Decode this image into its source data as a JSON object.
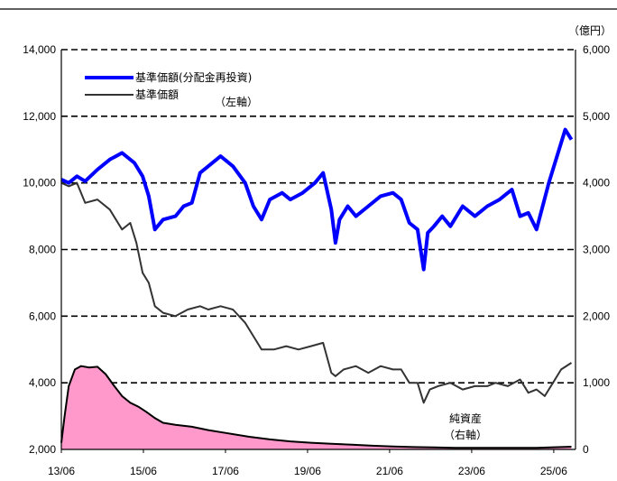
{
  "chart_data": {
    "type": "line",
    "unit_right": "（億円）",
    "x_ticks": [
      "13/06",
      "15/06",
      "17/06",
      "19/06",
      "21/06",
      "23/06",
      "25/06"
    ],
    "y_left": {
      "min": 2000,
      "max": 14000,
      "ticks": [
        "2,000",
        "4,000",
        "6,000",
        "8,000",
        "10,000",
        "12,000",
        "14,000"
      ]
    },
    "y_right": {
      "min": 0,
      "max": 6000,
      "ticks": [
        "0",
        "1,000",
        "2,000",
        "3,000",
        "4,000",
        "5,000",
        "6,000"
      ]
    },
    "gridlines": "dashed",
    "legend": {
      "items": [
        {
          "label": "基準価額(分配金再投資)",
          "color": "#0000ff"
        },
        {
          "label": "基準価額",
          "color": "#333333"
        }
      ],
      "note": "（左軸）"
    },
    "annotation": {
      "line1": "純資産",
      "line2": "（右軸）"
    },
    "series": [
      {
        "name": "基準価額(分配金再投資)",
        "axis": "left",
        "color": "#0000ff",
        "x": [
          2013.42,
          2013.6,
          2013.8,
          2014.0,
          2014.3,
          2014.6,
          2014.9,
          2015.2,
          2015.4,
          2015.55,
          2015.7,
          2015.9,
          2016.2,
          2016.4,
          2016.6,
          2016.8,
          2017.0,
          2017.3,
          2017.6,
          2017.9,
          2018.1,
          2018.3,
          2018.5,
          2018.8,
          2019.0,
          2019.3,
          2019.6,
          2019.8,
          2020.0,
          2020.1,
          2020.2,
          2020.4,
          2020.6,
          2020.9,
          2021.2,
          2021.5,
          2021.7,
          2021.9,
          2022.1,
          2022.25,
          2022.35,
          2022.5,
          2022.7,
          2022.9,
          2023.2,
          2023.5,
          2023.8,
          2024.1,
          2024.4,
          2024.6,
          2024.8,
          2025.0,
          2025.15,
          2025.3,
          2025.5,
          2025.7,
          2025.85
        ],
        "y": [
          10100,
          10000,
          10200,
          10050,
          10400,
          10700,
          10900,
          10600,
          10200,
          9600,
          8600,
          8900,
          9000,
          9300,
          9400,
          10300,
          10500,
          10800,
          10500,
          10000,
          9300,
          8900,
          9500,
          9700,
          9500,
          9700,
          10000,
          10300,
          9200,
          8200,
          8900,
          9300,
          9000,
          9300,
          9600,
          9700,
          9500,
          8800,
          8600,
          7400,
          8500,
          8700,
          9000,
          8700,
          9300,
          9000,
          9300,
          9500,
          9800,
          9000,
          9100,
          8600,
          9300,
          10000,
          10800,
          11600,
          11300
        ]
      },
      {
        "name": "基準価額",
        "axis": "left",
        "color": "#333333",
        "x": [
          2013.42,
          2013.6,
          2013.8,
          2014.0,
          2014.3,
          2014.6,
          2014.9,
          2015.1,
          2015.25,
          2015.4,
          2015.55,
          2015.7,
          2015.9,
          2016.2,
          2016.5,
          2016.8,
          2017.0,
          2017.3,
          2017.6,
          2017.9,
          2018.1,
          2018.3,
          2018.6,
          2018.9,
          2019.2,
          2019.5,
          2019.8,
          2020.0,
          2020.1,
          2020.3,
          2020.6,
          2020.9,
          2021.2,
          2021.5,
          2021.7,
          2021.9,
          2022.1,
          2022.25,
          2022.4,
          2022.6,
          2022.9,
          2023.2,
          2023.5,
          2023.8,
          2024.0,
          2024.3,
          2024.6,
          2024.8,
          2025.0,
          2025.2,
          2025.4,
          2025.6,
          2025.85
        ],
        "y": [
          10000,
          9900,
          10000,
          9400,
          9500,
          9200,
          8600,
          8800,
          8200,
          7300,
          7000,
          6300,
          6100,
          6000,
          6200,
          6300,
          6200,
          6300,
          6200,
          5800,
          5400,
          5000,
          5000,
          5100,
          5000,
          5100,
          5200,
          4300,
          4200,
          4400,
          4500,
          4300,
          4500,
          4400,
          4400,
          4000,
          4000,
          3400,
          3800,
          3900,
          4000,
          3800,
          3900,
          3900,
          4000,
          3900,
          4100,
          3700,
          3800,
          3600,
          4000,
          4400,
          4600
        ]
      },
      {
        "name": "純資産",
        "axis": "right",
        "type": "area",
        "color": "#ff99cc",
        "x": [
          2013.42,
          2013.5,
          2013.6,
          2013.75,
          2013.9,
          2014.1,
          2014.3,
          2014.5,
          2014.7,
          2014.9,
          2015.1,
          2015.3,
          2015.5,
          2015.7,
          2015.9,
          2016.2,
          2016.6,
          2017.0,
          2017.5,
          2018.0,
          2018.5,
          2019.0,
          2019.5,
          2020.0,
          2020.5,
          2021.0,
          2021.5,
          2022.0,
          2022.5,
          2023.0,
          2024.0,
          2025.0,
          2025.85
        ],
        "y": [
          100,
          500,
          950,
          1200,
          1250,
          1230,
          1240,
          1130,
          960,
          800,
          700,
          640,
          560,
          470,
          400,
          370,
          340,
          290,
          240,
          190,
          150,
          120,
          100,
          85,
          70,
          55,
          45,
          35,
          30,
          25,
          25,
          25,
          40
        ]
      }
    ],
    "x_range": [
      2013.42,
      2025.95
    ]
  }
}
